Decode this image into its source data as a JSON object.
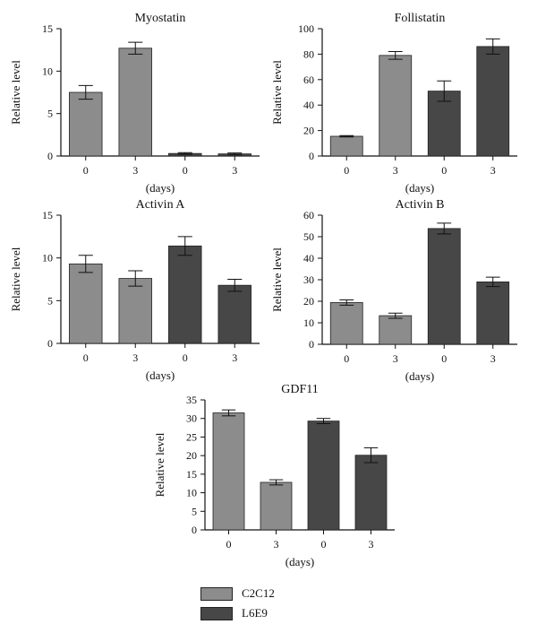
{
  "colors": {
    "C2C12": "#8c8c8c",
    "L6E9": "#474747"
  },
  "legend": [
    {
      "label": "C2C12",
      "color": "#8c8c8c"
    },
    {
      "label": "L6E9",
      "color": "#474747"
    }
  ],
  "chart_data": [
    {
      "type": "bar",
      "title": "Myostatin",
      "ylabel": "Relative level",
      "xlabel": "(days)",
      "categories": [
        "0",
        "3",
        "0",
        "3"
      ],
      "groups": [
        "C2C12",
        "C2C12",
        "L6E9",
        "L6E9"
      ],
      "values": [
        7.5,
        12.7,
        0.3,
        0.25
      ],
      "errors": [
        0.8,
        0.7,
        0.1,
        0.1
      ],
      "ylim": [
        0,
        15
      ],
      "yticks": [
        0,
        5,
        10,
        15
      ]
    },
    {
      "type": "bar",
      "title": "Follistatin",
      "ylabel": "Relative level",
      "xlabel": "(days)",
      "categories": [
        "0",
        "3",
        "0",
        "3"
      ],
      "groups": [
        "C2C12",
        "C2C12",
        "L6E9",
        "L6E9"
      ],
      "values": [
        15.5,
        79,
        51,
        86
      ],
      "errors": [
        0.5,
        3,
        8,
        6
      ],
      "ylim": [
        0,
        100
      ],
      "yticks": [
        0,
        20,
        40,
        60,
        80,
        100
      ]
    },
    {
      "type": "bar",
      "title": "Activin A",
      "ylabel": "Relative level",
      "xlabel": "(days)",
      "categories": [
        "0",
        "3",
        "0",
        "3"
      ],
      "groups": [
        "C2C12",
        "C2C12",
        "L6E9",
        "L6E9"
      ],
      "values": [
        9.3,
        7.6,
        11.4,
        6.8
      ],
      "errors": [
        1.0,
        0.9,
        1.1,
        0.7
      ],
      "ylim": [
        0,
        15
      ],
      "yticks": [
        0,
        5,
        10,
        15
      ]
    },
    {
      "type": "bar",
      "title": "Activin B",
      "ylabel": "Relative level",
      "xlabel": "(days)",
      "categories": [
        "0",
        "3",
        "0",
        "3"
      ],
      "groups": [
        "C2C12",
        "C2C12",
        "L6E9",
        "L6E9"
      ],
      "values": [
        19.4,
        13.3,
        53.8,
        29
      ],
      "errors": [
        1.2,
        1.2,
        2.5,
        2.2
      ],
      "ylim": [
        0,
        60
      ],
      "yticks": [
        0,
        10,
        20,
        30,
        40,
        50,
        60
      ]
    },
    {
      "type": "bar",
      "title": "GDF11",
      "ylabel": "Relative level",
      "xlabel": "(days)",
      "categories": [
        "0",
        "3",
        "0",
        "3"
      ],
      "groups": [
        "C2C12",
        "C2C12",
        "L6E9",
        "L6E9"
      ],
      "values": [
        31.5,
        12.8,
        29.3,
        20.1
      ],
      "errors": [
        0.8,
        0.7,
        0.7,
        2.0
      ],
      "ylim": [
        0,
        35
      ],
      "yticks": [
        0,
        5,
        10,
        15,
        20,
        25,
        30,
        35
      ]
    }
  ]
}
